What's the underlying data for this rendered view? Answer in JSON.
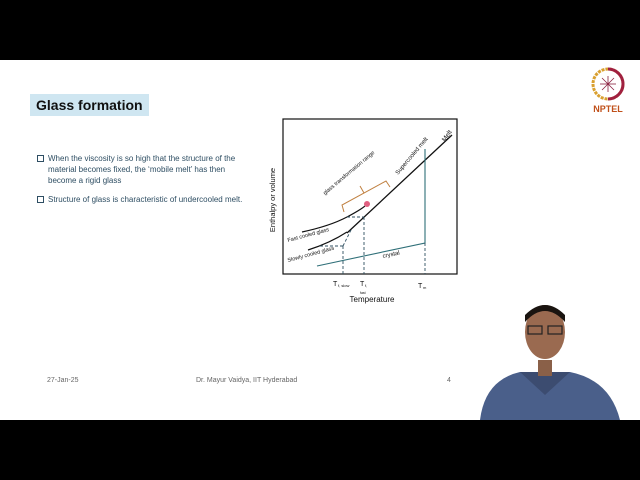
{
  "slide": {
    "title": "Glass formation",
    "bullets": [
      "When the viscosity is so high that the structure of the material becomes fixed, the ‘mobile melt’ has then become a rigid glass",
      "Structure of glass is characteristic of undercooled melt."
    ],
    "footer": {
      "date": "27-Jan-25",
      "author": "Dr. Mayur Vaidya, IIT Hyderabad",
      "page": "4"
    },
    "logo_text": "NPTEL"
  },
  "diagram": {
    "ylabel": "Enthalpy or volume",
    "xlabel": "Temperature",
    "labels": {
      "melt": "Melt",
      "supercooled": "Supercooled melt",
      "range": "glass transformation range",
      "fast": "Fast cooled glass",
      "slow": "Slowly cooled glass",
      "crystal": "crystal"
    },
    "ticks": {
      "tslow": "T",
      "tslow_sub": "f, slow",
      "tfast": "T",
      "tfast_sub": "f,",
      "tfast_sub2": "fast",
      "tm": "T",
      "tm_sub": "m"
    },
    "colors": {
      "line": "#111111",
      "crystal": "#2f6f78",
      "bracket": "#c08040"
    }
  }
}
